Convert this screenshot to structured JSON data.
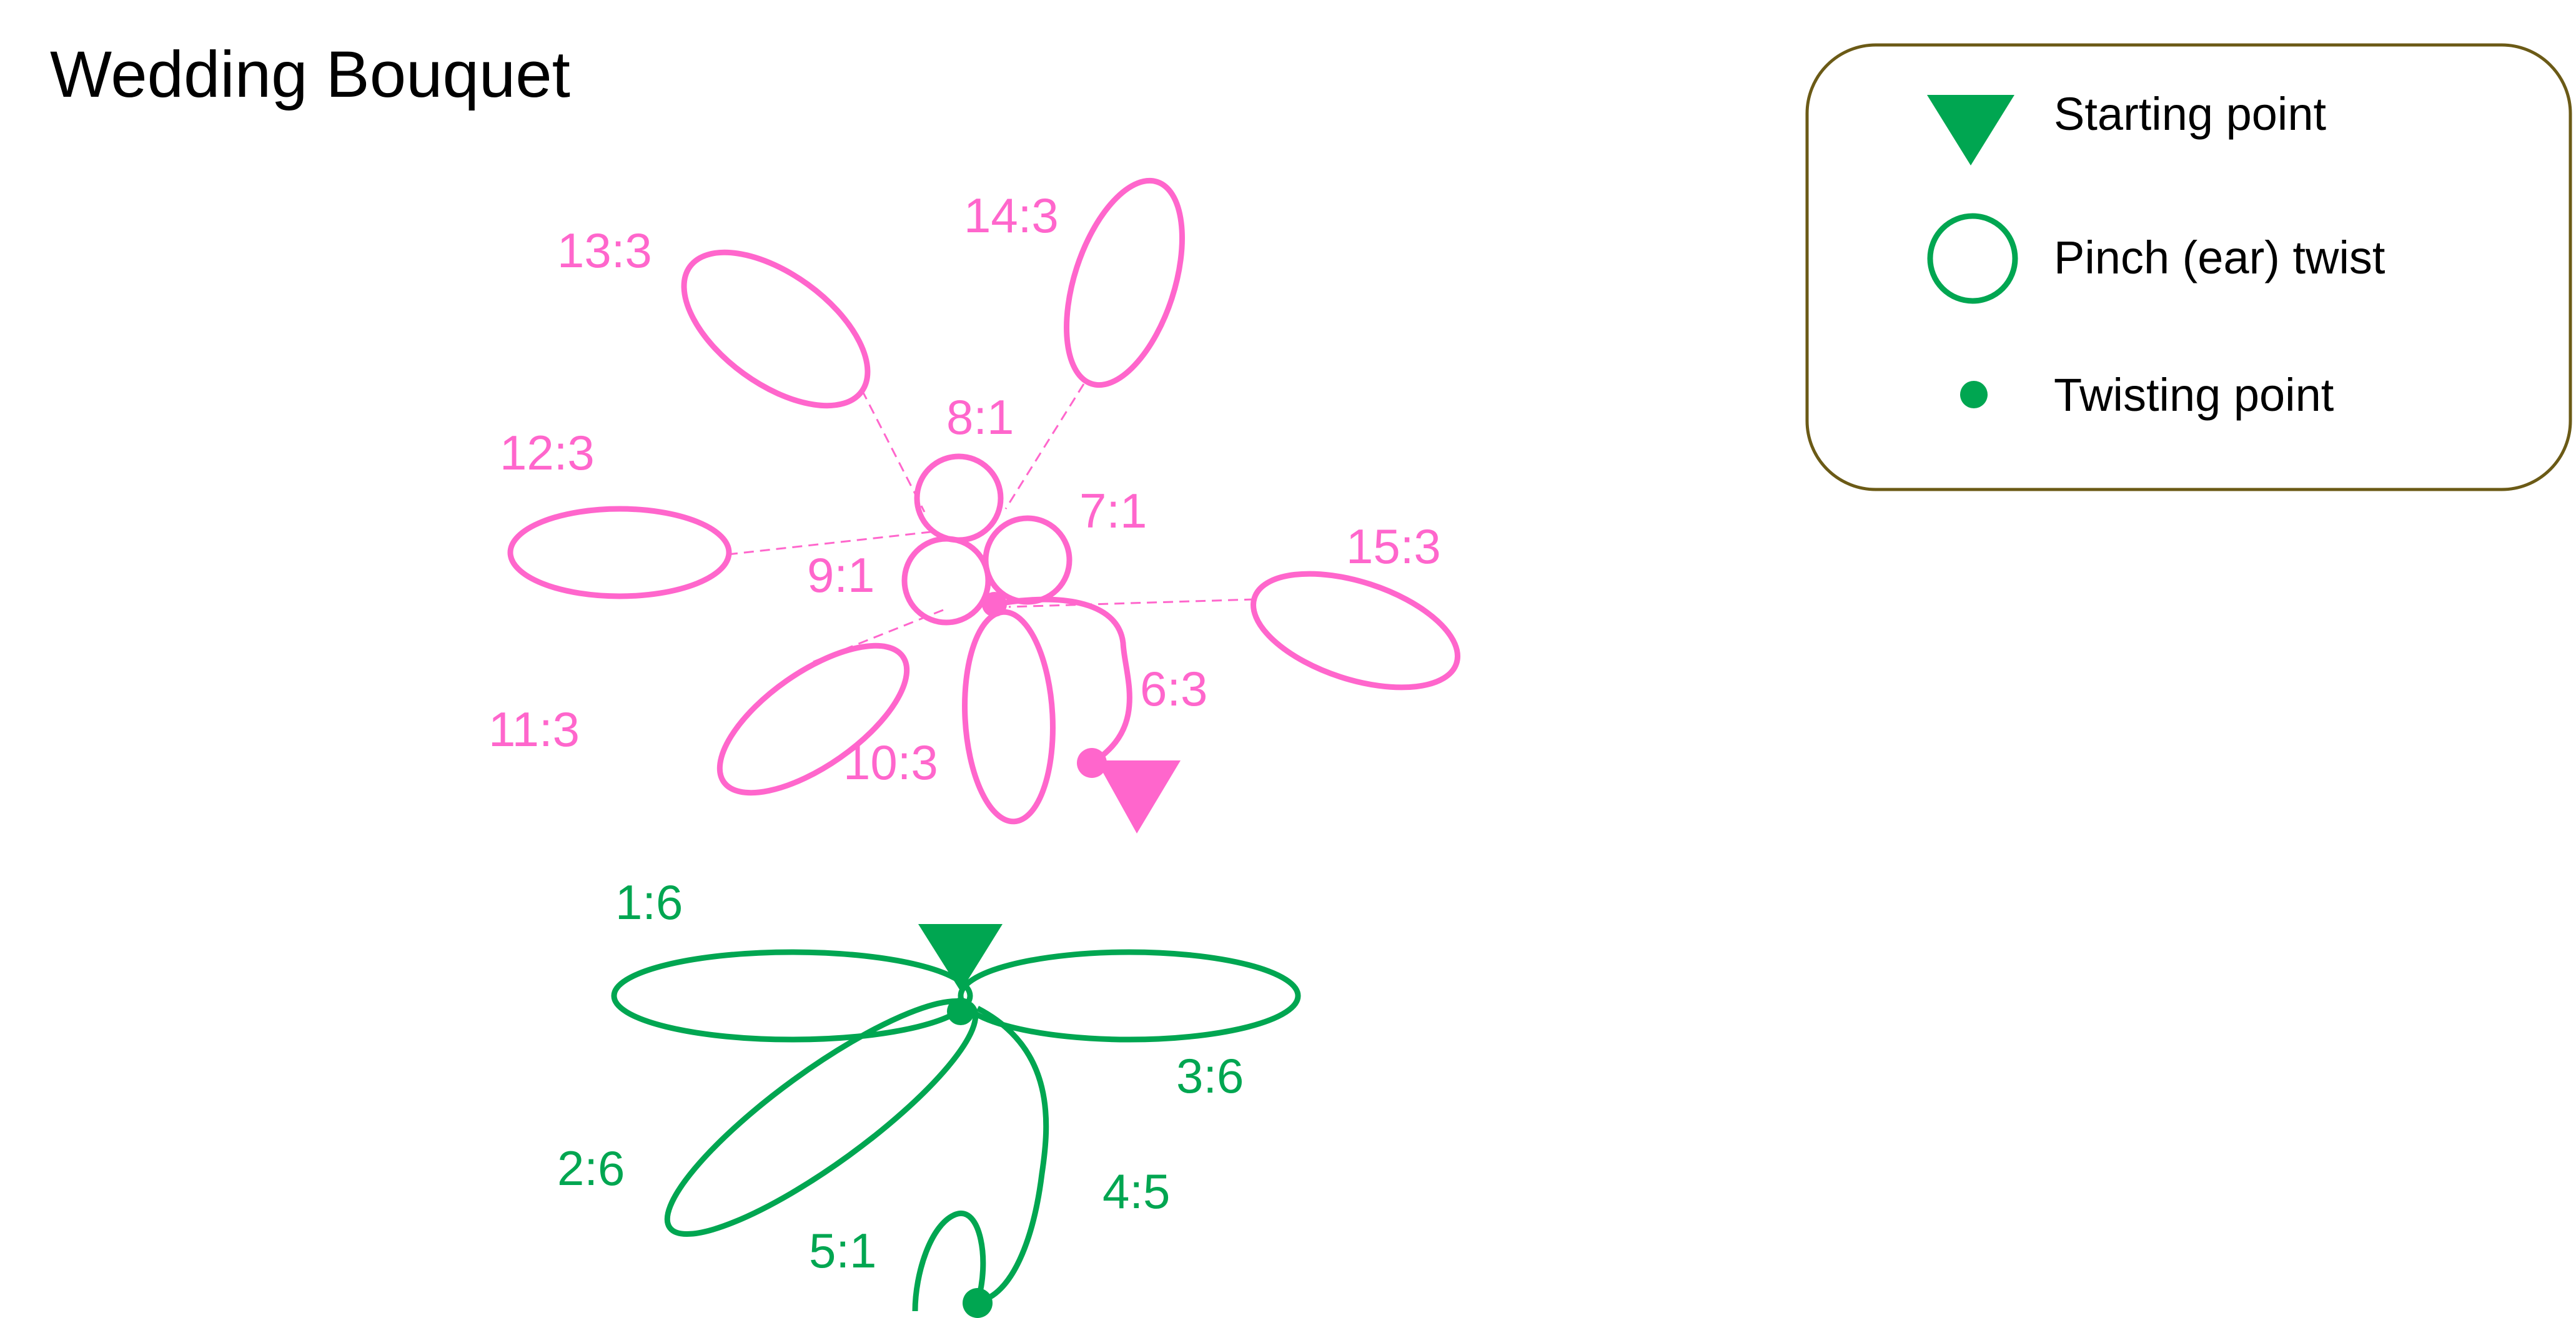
{
  "title": "Wedding Bouquet",
  "colors": {
    "pink": "#ff66cc",
    "green": "#00a651",
    "legend_border": "#6b5a16",
    "text": "#000000"
  },
  "legend": {
    "items": [
      {
        "icon": "starting-point-triangle-icon",
        "label": "Starting point"
      },
      {
        "icon": "pinch-twist-circle-icon",
        "label": "Pinch (ear) twist"
      },
      {
        "icon": "twisting-point-dot-icon",
        "label": "Twisting point"
      }
    ]
  },
  "flower_labels": [
    "13:3",
    "14:3",
    "8:1",
    "12:3",
    "7:1",
    "15:3",
    "9:1",
    "6:3",
    "11:3",
    "10:3"
  ],
  "stem_labels": [
    "1:6",
    "3:6",
    "2:6",
    "4:5",
    "5:1"
  ]
}
